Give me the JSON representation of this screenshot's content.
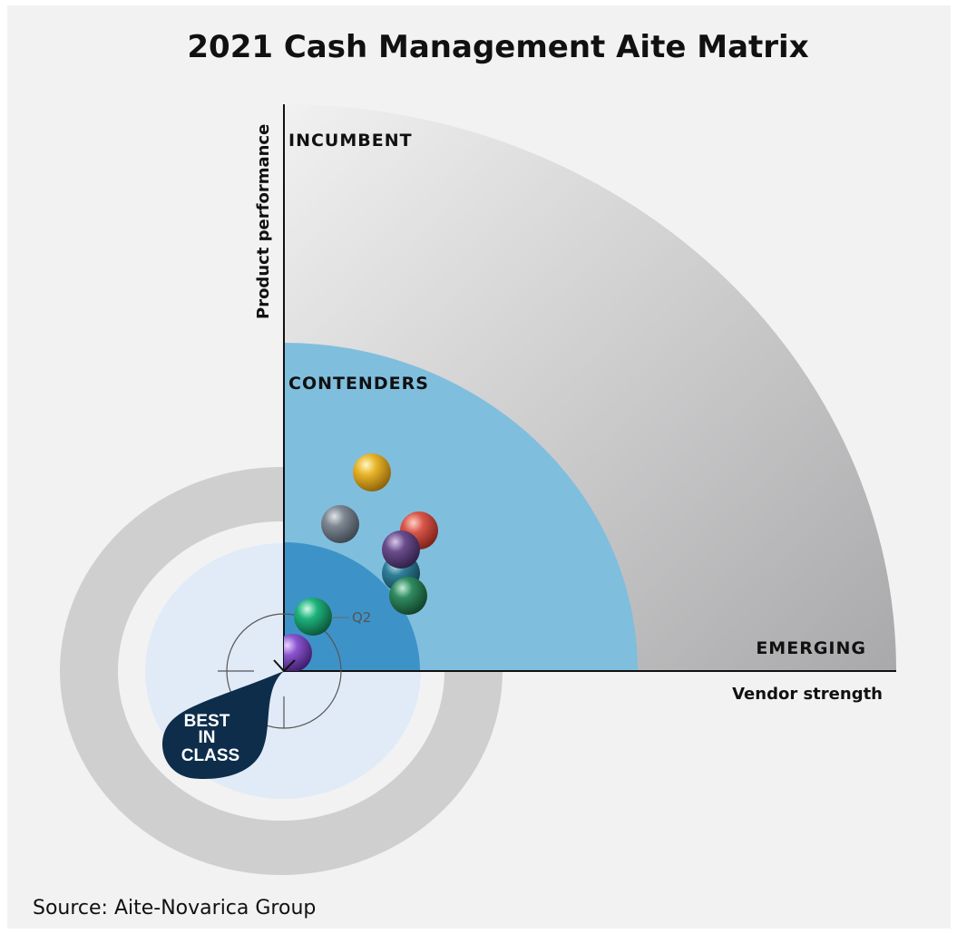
{
  "header": {
    "title": "2021 Cash Management Aite Matrix"
  },
  "axes": {
    "y_label": "Product performance",
    "x_label": "Vendor strength"
  },
  "zones": {
    "outer": "INCUMBENT",
    "middle": "CONTENDERS",
    "corner": "EMERGING"
  },
  "badge": {
    "lines": [
      "BEST",
      "IN",
      "CLASS"
    ]
  },
  "annotation": "Q2",
  "footer": {
    "source": "Source: Aite-Novarica Group"
  }
}
